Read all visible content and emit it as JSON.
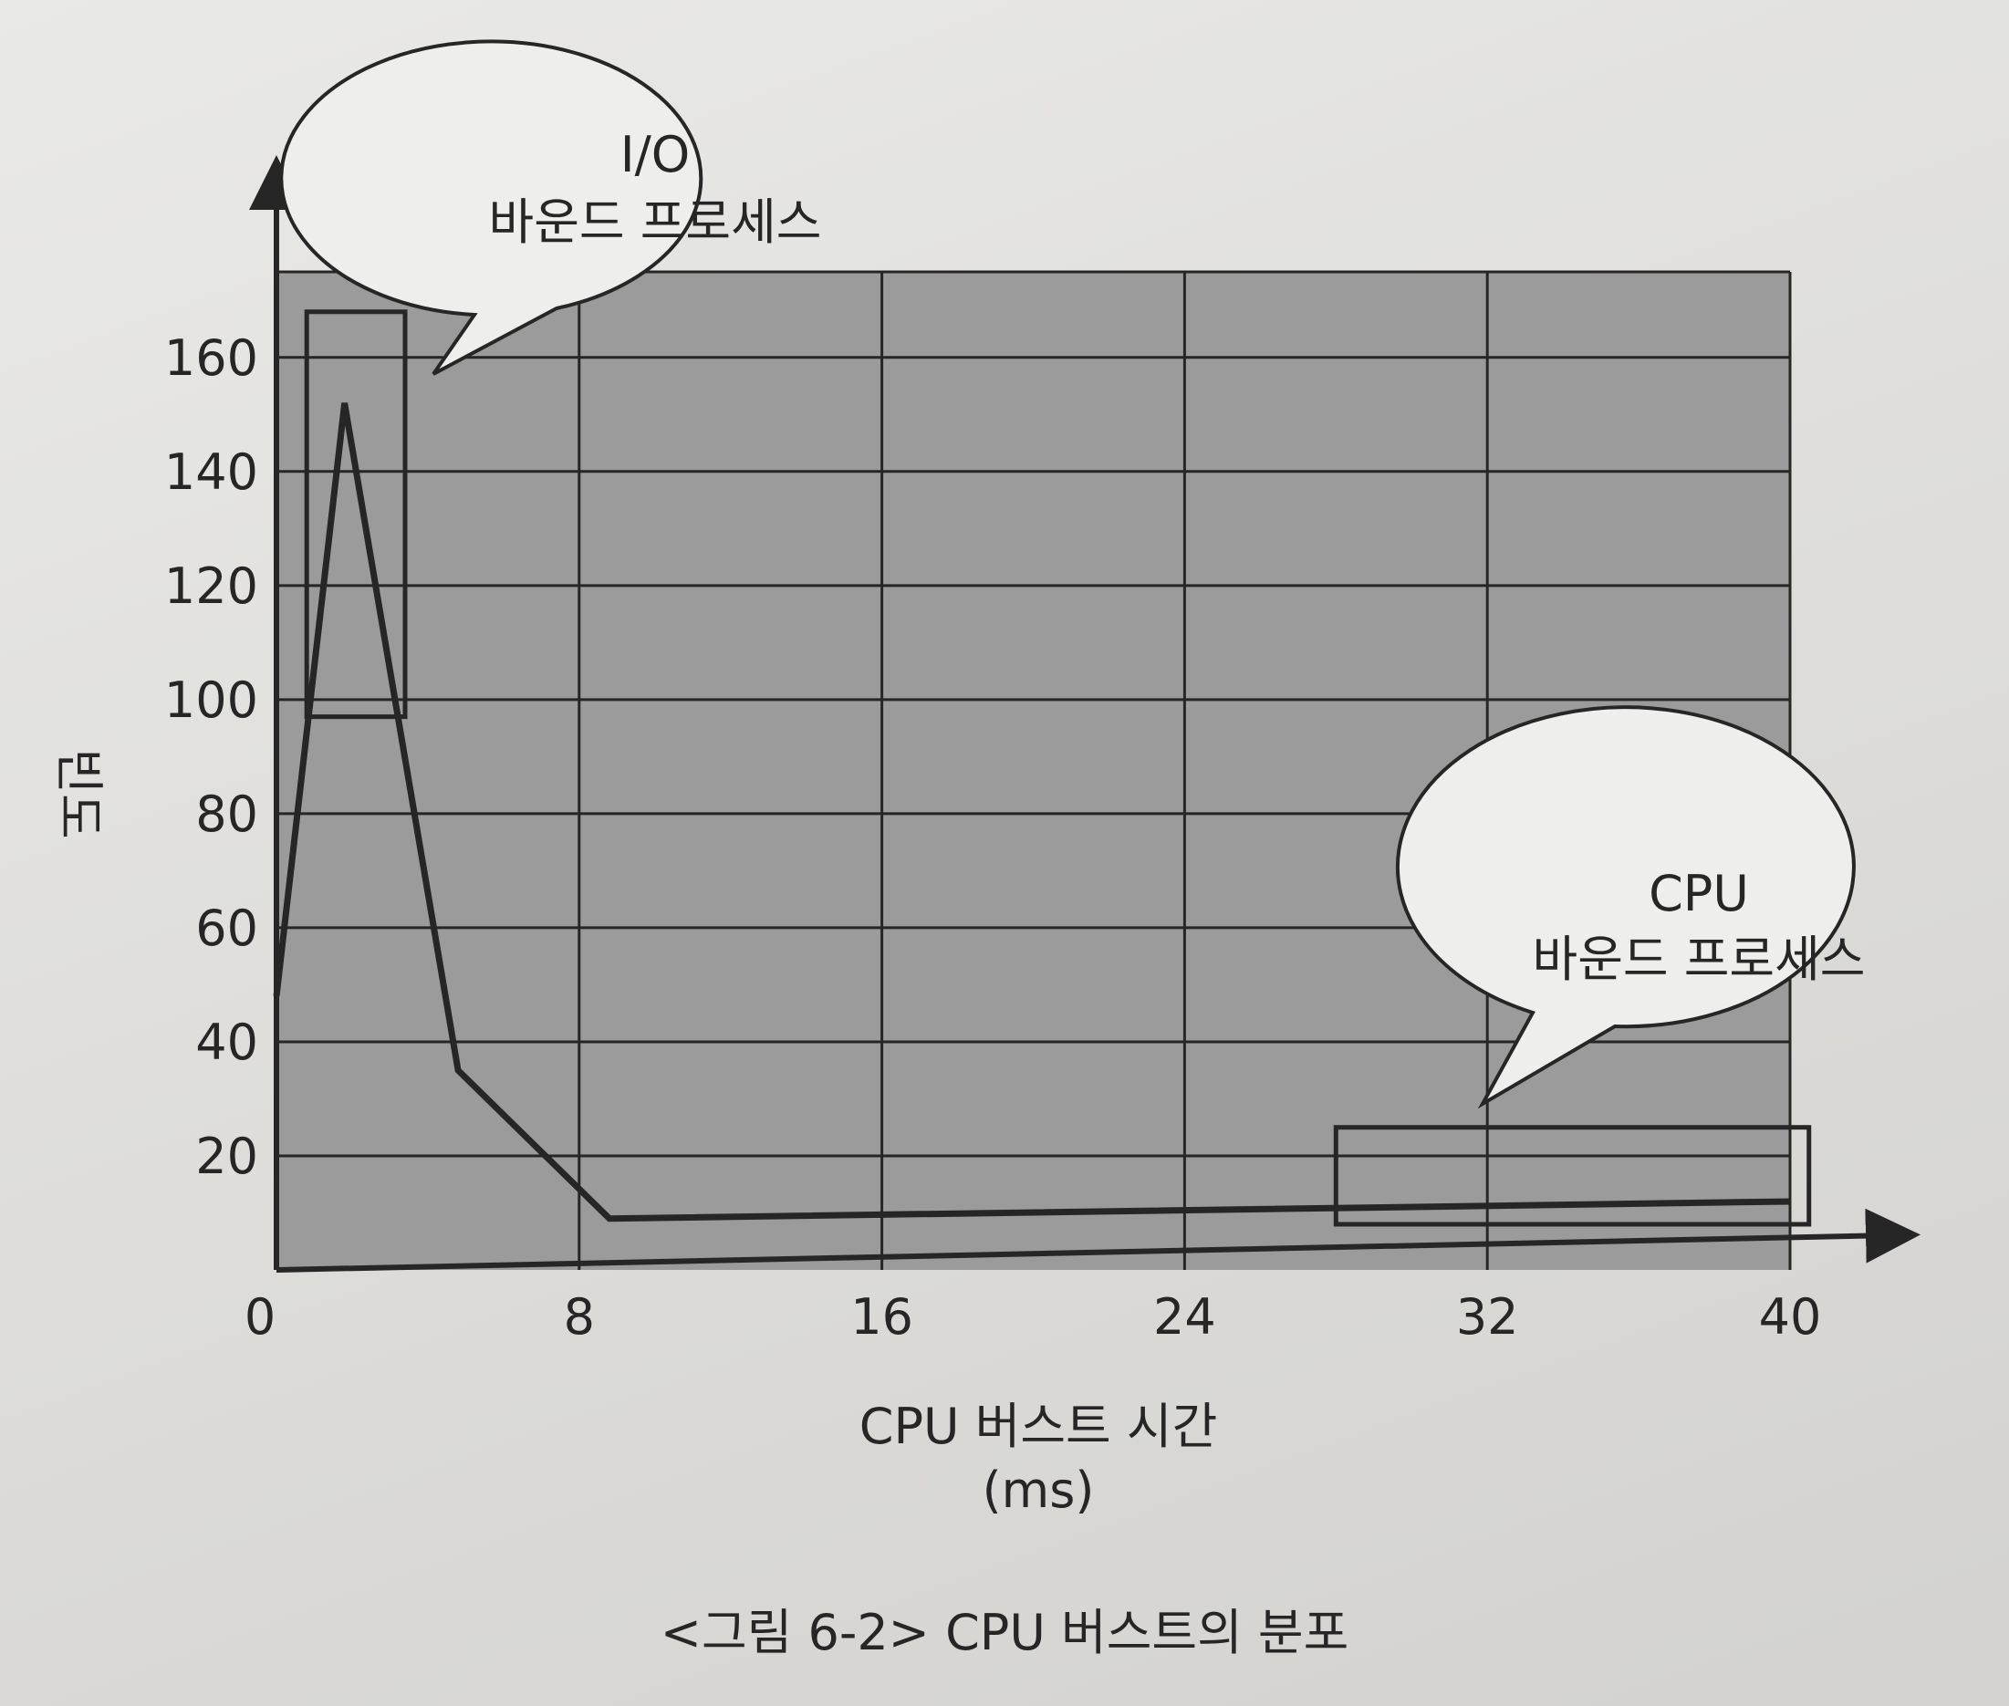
{
  "figure_caption": "<그림 6-2> CPU 버스트의 분포",
  "colors": {
    "plot_fill": "#9b9b9b",
    "plot_fill_right": "#8c8c8c",
    "ink": "#262626",
    "page": "#e4e3e0"
  },
  "chart_data": {
    "type": "line",
    "title": "",
    "xlabel": "CPU 버스트 시간",
    "xunit": "(ms)",
    "ylabel": "빈도",
    "xlim": [
      0,
      40
    ],
    "ylim": [
      0,
      175
    ],
    "x_ticks": [
      0,
      8,
      16,
      24,
      32,
      40
    ],
    "y_ticks": [
      20,
      40,
      60,
      80,
      100,
      120,
      140,
      160
    ],
    "grid": true,
    "series": [
      {
        "x": [
          0,
          1.8,
          4.8,
          8.8,
          40
        ],
        "y": [
          48,
          152,
          35,
          9,
          12
        ]
      }
    ],
    "annotations": [
      {
        "text_line1": "I/O",
        "text_line2": "바운드 프로세스",
        "box_x": [
          0.8,
          3.4
        ],
        "box_y": [
          97,
          168
        ]
      },
      {
        "text_line1": "CPU",
        "text_line2": "바운드 프로세스",
        "box_x": [
          28,
          40.5
        ],
        "box_y": [
          8,
          25
        ]
      }
    ]
  }
}
